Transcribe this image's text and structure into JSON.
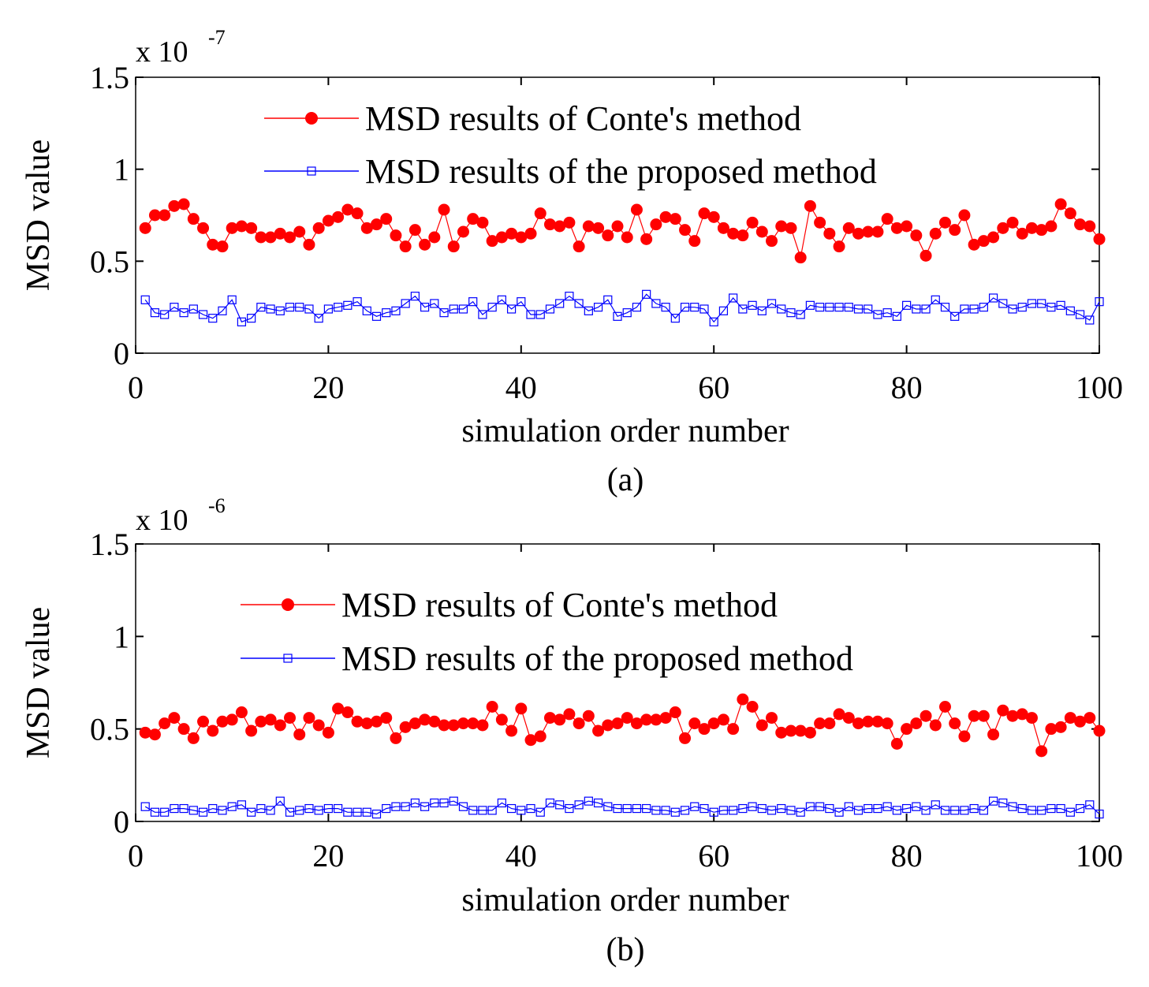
{
  "chart_data": [
    {
      "type": "line",
      "caption": "(a)",
      "xlabel": "simulation order number",
      "ylabel": "MSD value",
      "scale_prefix": "x 10",
      "scale_exponent": "-7",
      "xlim": [
        0,
        100
      ],
      "ylim": [
        0,
        1.5
      ],
      "xticks": [
        0,
        20,
        40,
        60,
        80,
        100
      ],
      "xtick_labels": [
        "0",
        "20",
        "40",
        "60",
        "80",
        "100"
      ],
      "yticks": [
        0,
        0.5,
        1,
        1.5
      ],
      "ytick_labels": [
        "0",
        "0.5",
        "1",
        "1.5"
      ],
      "legend": "top-center",
      "x": [
        1,
        2,
        3,
        4,
        5,
        6,
        7,
        8,
        9,
        10,
        11,
        12,
        13,
        14,
        15,
        16,
        17,
        18,
        19,
        20,
        21,
        22,
        23,
        24,
        25,
        26,
        27,
        28,
        29,
        30,
        31,
        32,
        33,
        34,
        35,
        36,
        37,
        38,
        39,
        40,
        41,
        42,
        43,
        44,
        45,
        46,
        47,
        48,
        49,
        50,
        51,
        52,
        53,
        54,
        55,
        56,
        57,
        58,
        59,
        60,
        61,
        62,
        63,
        64,
        65,
        66,
        67,
        68,
        69,
        70,
        71,
        72,
        73,
        74,
        75,
        76,
        77,
        78,
        79,
        80,
        81,
        82,
        83,
        84,
        85,
        86,
        87,
        88,
        89,
        90,
        91,
        92,
        93,
        94,
        95,
        96,
        97,
        98,
        99,
        100
      ],
      "series": [
        {
          "name": "MSD results of Conte's method",
          "color": "#ff0000",
          "marker": "filled-circle",
          "values": [
            0.68,
            0.75,
            0.75,
            0.8,
            0.81,
            0.73,
            0.68,
            0.59,
            0.58,
            0.68,
            0.69,
            0.68,
            0.63,
            0.63,
            0.65,
            0.63,
            0.66,
            0.59,
            0.68,
            0.72,
            0.74,
            0.78,
            0.76,
            0.68,
            0.7,
            0.73,
            0.64,
            0.58,
            0.67,
            0.59,
            0.63,
            0.78,
            0.58,
            0.66,
            0.73,
            0.71,
            0.61,
            0.63,
            0.65,
            0.63,
            0.65,
            0.76,
            0.7,
            0.69,
            0.71,
            0.58,
            0.69,
            0.68,
            0.64,
            0.69,
            0.63,
            0.78,
            0.62,
            0.7,
            0.74,
            0.73,
            0.67,
            0.61,
            0.76,
            0.74,
            0.68,
            0.65,
            0.64,
            0.71,
            0.66,
            0.61,
            0.69,
            0.68,
            0.52,
            0.8,
            0.71,
            0.65,
            0.58,
            0.68,
            0.65,
            0.66,
            0.66,
            0.73,
            0.68,
            0.69,
            0.64,
            0.53,
            0.65,
            0.71,
            0.67,
            0.75,
            0.59,
            0.61,
            0.63,
            0.68,
            0.71,
            0.65,
            0.68,
            0.67,
            0.69,
            0.81,
            0.76,
            0.7,
            0.69,
            0.62
          ]
        },
        {
          "name": "MSD results of the proposed method",
          "color": "#0000ff",
          "marker": "open-square",
          "values": [
            0.29,
            0.22,
            0.21,
            0.25,
            0.22,
            0.24,
            0.21,
            0.19,
            0.23,
            0.29,
            0.17,
            0.19,
            0.25,
            0.24,
            0.23,
            0.25,
            0.25,
            0.24,
            0.19,
            0.24,
            0.25,
            0.26,
            0.28,
            0.23,
            0.2,
            0.22,
            0.23,
            0.27,
            0.31,
            0.25,
            0.27,
            0.22,
            0.24,
            0.24,
            0.28,
            0.21,
            0.25,
            0.29,
            0.24,
            0.28,
            0.21,
            0.21,
            0.24,
            0.27,
            0.31,
            0.27,
            0.23,
            0.25,
            0.29,
            0.2,
            0.22,
            0.25,
            0.32,
            0.27,
            0.25,
            0.19,
            0.25,
            0.25,
            0.24,
            0.17,
            0.23,
            0.3,
            0.24,
            0.26,
            0.23,
            0.27,
            0.24,
            0.22,
            0.21,
            0.26,
            0.25,
            0.25,
            0.25,
            0.25,
            0.24,
            0.24,
            0.21,
            0.22,
            0.2,
            0.26,
            0.24,
            0.24,
            0.29,
            0.25,
            0.2,
            0.24,
            0.24,
            0.25,
            0.3,
            0.27,
            0.24,
            0.25,
            0.27,
            0.27,
            0.25,
            0.26,
            0.23,
            0.21,
            0.18,
            0.28
          ]
        }
      ]
    },
    {
      "type": "line",
      "caption": "(b)",
      "xlabel": "simulation order number",
      "ylabel": "MSD value",
      "scale_prefix": "x 10",
      "scale_exponent": "-6",
      "xlim": [
        0,
        100
      ],
      "ylim": [
        0,
        1.5
      ],
      "xticks": [
        0,
        20,
        40,
        60,
        80,
        100
      ],
      "xtick_labels": [
        "0",
        "20",
        "40",
        "60",
        "80",
        "100"
      ],
      "yticks": [
        0,
        0.5,
        1,
        1.5
      ],
      "ytick_labels": [
        "0",
        "0.5",
        "1",
        "1.5"
      ],
      "legend": "top-center",
      "x": [
        1,
        2,
        3,
        4,
        5,
        6,
        7,
        8,
        9,
        10,
        11,
        12,
        13,
        14,
        15,
        16,
        17,
        18,
        19,
        20,
        21,
        22,
        23,
        24,
        25,
        26,
        27,
        28,
        29,
        30,
        31,
        32,
        33,
        34,
        35,
        36,
        37,
        38,
        39,
        40,
        41,
        42,
        43,
        44,
        45,
        46,
        47,
        48,
        49,
        50,
        51,
        52,
        53,
        54,
        55,
        56,
        57,
        58,
        59,
        60,
        61,
        62,
        63,
        64,
        65,
        66,
        67,
        68,
        69,
        70,
        71,
        72,
        73,
        74,
        75,
        76,
        77,
        78,
        79,
        80,
        81,
        82,
        83,
        84,
        85,
        86,
        87,
        88,
        89,
        90,
        91,
        92,
        93,
        94,
        95,
        96,
        97,
        98,
        99,
        100
      ],
      "series": [
        {
          "name": "MSD results of Conte's method",
          "color": "#ff0000",
          "marker": "filled-circle",
          "values": [
            0.48,
            0.47,
            0.53,
            0.56,
            0.5,
            0.45,
            0.54,
            0.49,
            0.54,
            0.55,
            0.59,
            0.49,
            0.54,
            0.55,
            0.52,
            0.56,
            0.47,
            0.56,
            0.52,
            0.48,
            0.61,
            0.59,
            0.54,
            0.53,
            0.54,
            0.56,
            0.45,
            0.51,
            0.53,
            0.55,
            0.54,
            0.52,
            0.52,
            0.53,
            0.53,
            0.52,
            0.62,
            0.55,
            0.49,
            0.61,
            0.44,
            0.46,
            0.56,
            0.55,
            0.58,
            0.53,
            0.57,
            0.49,
            0.52,
            0.53,
            0.56,
            0.53,
            0.55,
            0.55,
            0.56,
            0.59,
            0.45,
            0.53,
            0.5,
            0.53,
            0.55,
            0.5,
            0.66,
            0.62,
            0.52,
            0.56,
            0.48,
            0.49,
            0.49,
            0.48,
            0.53,
            0.53,
            0.58,
            0.56,
            0.53,
            0.54,
            0.54,
            0.53,
            0.42,
            0.5,
            0.53,
            0.57,
            0.52,
            0.62,
            0.53,
            0.46,
            0.57,
            0.57,
            0.47,
            0.6,
            0.57,
            0.58,
            0.56,
            0.38,
            0.5,
            0.51,
            0.56,
            0.54,
            0.56,
            0.49
          ]
        },
        {
          "name": "MSD results of the proposed method",
          "color": "#0000ff",
          "marker": "open-square",
          "values": [
            0.08,
            0.05,
            0.05,
            0.07,
            0.07,
            0.06,
            0.05,
            0.07,
            0.06,
            0.08,
            0.09,
            0.05,
            0.07,
            0.06,
            0.11,
            0.05,
            0.06,
            0.07,
            0.06,
            0.07,
            0.07,
            0.05,
            0.05,
            0.05,
            0.04,
            0.07,
            0.08,
            0.08,
            0.1,
            0.08,
            0.1,
            0.1,
            0.11,
            0.08,
            0.06,
            0.06,
            0.06,
            0.1,
            0.07,
            0.06,
            0.07,
            0.05,
            0.1,
            0.09,
            0.07,
            0.09,
            0.11,
            0.1,
            0.08,
            0.07,
            0.07,
            0.07,
            0.07,
            0.06,
            0.06,
            0.05,
            0.06,
            0.08,
            0.07,
            0.05,
            0.06,
            0.06,
            0.07,
            0.08,
            0.07,
            0.06,
            0.07,
            0.06,
            0.05,
            0.08,
            0.08,
            0.07,
            0.05,
            0.08,
            0.06,
            0.07,
            0.07,
            0.08,
            0.06,
            0.07,
            0.08,
            0.06,
            0.09,
            0.06,
            0.06,
            0.06,
            0.07,
            0.06,
            0.11,
            0.1,
            0.08,
            0.07,
            0.06,
            0.06,
            0.07,
            0.07,
            0.05,
            0.07,
            0.09,
            0.04
          ]
        }
      ]
    }
  ]
}
